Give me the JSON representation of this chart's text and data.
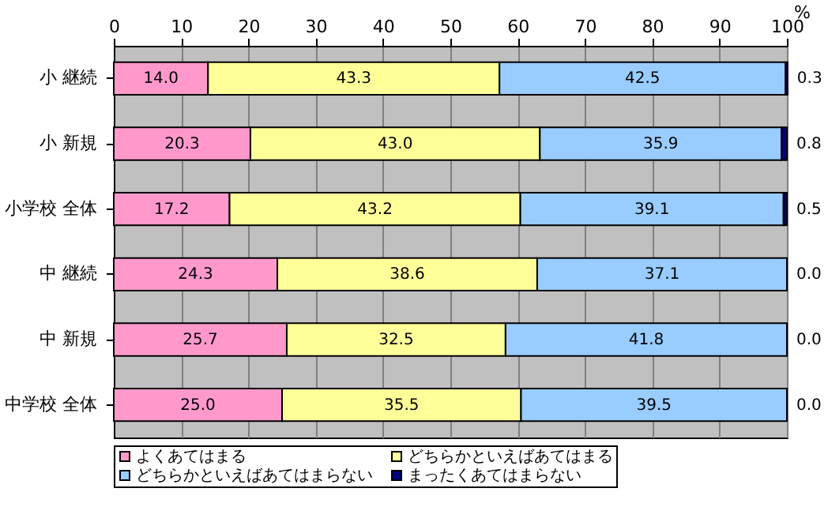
{
  "chart_data": {
    "type": "bar",
    "orientation": "horizontal",
    "stacked": true,
    "xlabel": "%",
    "categories": [
      "小 継続",
      "小 新規",
      "小学校 全体",
      "中 継続",
      "中 新規",
      "中学校 全体"
    ],
    "series": [
      {
        "name": "よくあてはまる",
        "color": "#ff99cc",
        "values": [
          14.0,
          20.3,
          17.2,
          24.3,
          25.7,
          25.0
        ],
        "value_labels": [
          "14.0",
          "20.3",
          "17.2",
          "24.3",
          "25.7",
          "25.0"
        ]
      },
      {
        "name": "どちらかといえばあてはまる",
        "color": "#ffff99",
        "values": [
          43.3,
          43.0,
          43.2,
          38.6,
          32.5,
          35.5
        ],
        "value_labels": [
          "43.3",
          "43.0",
          "43.2",
          "38.6",
          "32.5",
          "35.5"
        ]
      },
      {
        "name": "どちらかといえばあてはまらない",
        "color": "#99ccff",
        "values": [
          42.5,
          35.9,
          39.1,
          37.1,
          41.8,
          39.5
        ],
        "value_labels": [
          "42.5",
          "35.9",
          "39.1",
          "37.1",
          "41.8",
          "39.5"
        ]
      },
      {
        "name": "まったくあてはまらない",
        "color": "#000080",
        "values": [
          0.3,
          0.8,
          0.5,
          0.0,
          0.0,
          0.0
        ],
        "value_labels": [
          "0.3",
          "0.8",
          "0.5",
          "0.0",
          "0.0",
          "0.0"
        ]
      }
    ],
    "xlim": [
      0,
      100
    ],
    "xticks": [
      0,
      10,
      20,
      30,
      40,
      50,
      60,
      70,
      80,
      90,
      100
    ],
    "grid": true,
    "legend": "bottom"
  }
}
